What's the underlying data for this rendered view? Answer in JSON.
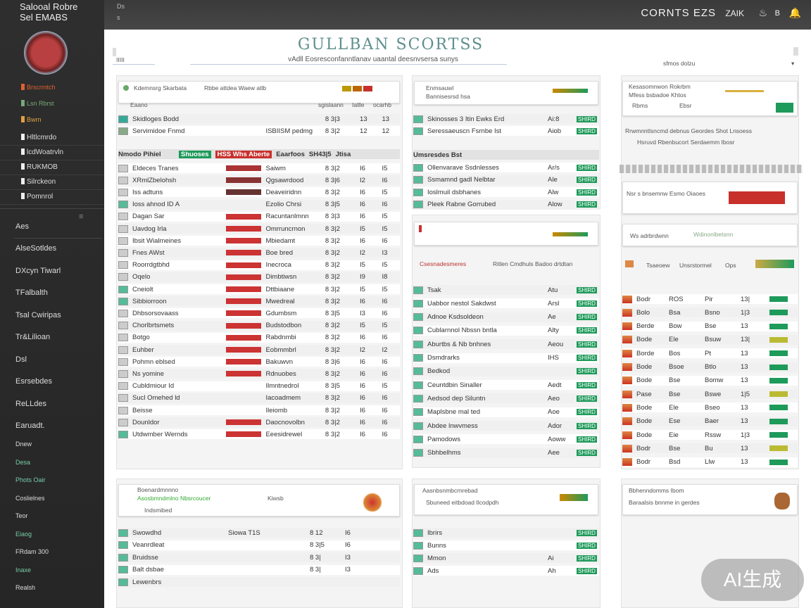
{
  "sidebar": {
    "title_line1": "Salooal Robre",
    "title_line2": "Sel EMABS",
    "top_items": [
      {
        "label": "Brscrmtch",
        "color": "#e06030"
      },
      {
        "label": "Lsn Rbrst",
        "color": "#7a7"
      },
      {
        "label": "Bwrn",
        "color": "#e0a040"
      }
    ],
    "group_items": [
      "Hltlcmrdo",
      "lcdWoatrvln",
      "RUKMOB",
      "Silrckeon",
      "Pomnrol"
    ],
    "section_label": "Aes",
    "items": [
      "AlseSotldes",
      "DXcyn Tiwarl",
      "TFalbalth",
      "Tsal Cwiripas",
      "Tr&Lilioan",
      "Dsl",
      "Esrsebdes",
      "ReLLdes",
      "Earuadt."
    ],
    "small_items": [
      {
        "label": "Dnew",
        "color": "#ddd"
      },
      {
        "label": "Desa",
        "color": "#7ca"
      },
      {
        "label": "Phots Oair",
        "color": "#7ca"
      },
      {
        "label": "Coslielnes",
        "color": "#ddd"
      },
      {
        "label": "Teor",
        "color": "#ddd"
      },
      {
        "label": "Eiaog",
        "color": "#7ca"
      },
      {
        "label": "FRdam 300",
        "color": "#ddd"
      },
      {
        "label": "Inaxe",
        "color": "#7ca"
      },
      {
        "label": "Realsh",
        "color": "#ddd"
      }
    ]
  },
  "topbar": {
    "left1": "Ds",
    "left2": "s",
    "title": "CORNTS EZS",
    "right_text": "ZAIK",
    "icons": [
      "flame-icon",
      "b-icon",
      "bell-icon"
    ]
  },
  "header": {
    "title": "GULLBAN SCORTSS",
    "subtitle": "vAdll Eosresconfanntlanav uaantal deesnvsersa sunys",
    "left_label": "IIIII",
    "right_label": "sfmos dolzu"
  },
  "col1": {
    "head_title": "Kdemnsrg Skarbata",
    "head_desc": "Rbbe attdea Waew atlb",
    "columns": [
      "Eaano",
      "",
      "",
      "sgislaann",
      "Iallle",
      "ocarhb"
    ],
    "rows": [
      {
        "n": "Skidloges Bodd",
        "b": "",
        "t": "",
        "v": "8 3|3",
        "p": "13",
        "q": "13",
        "i": "#3a9"
      },
      {
        "n": "Servimidoe Fnmd",
        "b": "",
        "t": "ISBIISM pedmg",
        "v": "8 3|2",
        "p": "12",
        "q": "12",
        "i": "#8a8"
      }
    ],
    "group": {
      "label": "Nmodo Pihiel",
      "chip": "Shuoses",
      "tag": "HSS Whs Aberte",
      "tag2": "Eaarfoos",
      "n1": "SH43|5",
      "n2": "Jtisa"
    },
    "rows2": [
      {
        "n": "Eldeces Tranes",
        "b": "#a33",
        "t": "Saiwm",
        "v": "8 3|2",
        "p": "I6",
        "q": "I5",
        "i": "#ccc"
      },
      {
        "n": "XRmlZbelohsh",
        "b": "#833",
        "t": "Qgsawrdood",
        "v": "8 3|6",
        "p": "I2",
        "q": "I6",
        "i": "#ccc"
      },
      {
        "n": "Iss adtuns",
        "b": "#633",
        "t": "Deaveiridnn",
        "v": "8 3|2",
        "p": "I6",
        "q": "I5",
        "i": "#ccc"
      },
      {
        "n": "Ioss ahnod ID A",
        "b": "",
        "t": "Ezolio Chrsi",
        "v": "8 3|5",
        "p": "I6",
        "q": "I6",
        "i": "#5b9"
      },
      {
        "n": "Dagan Sar",
        "b": "#c33",
        "t": "Racuntanlmnn",
        "v": "8 3|3",
        "p": "I6",
        "q": "I5",
        "i": "#ccc"
      },
      {
        "n": "Uavdog Irla",
        "b": "#c33",
        "t": "Omrruncrnon",
        "v": "8 3|2",
        "p": "I5",
        "q": "I5",
        "i": "#ccc"
      },
      {
        "n": "Ibsit Wialmeines",
        "b": "#c33",
        "t": "Mbiedamt",
        "v": "8 3|2",
        "p": "I6",
        "q": "I6",
        "i": "#ccc"
      },
      {
        "n": "Fnes AWst",
        "b": "#c33",
        "t": "Boe bred",
        "v": "8 3|2",
        "p": "I2",
        "q": "I3",
        "i": "#ccc"
      },
      {
        "n": "Roorrdgtbhd",
        "b": "#c33",
        "t": "Inecroca",
        "v": "8 3|2",
        "p": "I5",
        "q": "I5",
        "i": "#ccc"
      },
      {
        "n": "Oqelo",
        "b": "#c33",
        "t": "Dimbtiwsn",
        "v": "8 3|2",
        "p": "I9",
        "q": "I8",
        "i": "#ccc"
      },
      {
        "n": "Cneiolt",
        "b": "#c33",
        "t": "Dttbiaane",
        "v": "8 3|2",
        "p": "I5",
        "q": "I5",
        "i": "#5b9"
      },
      {
        "n": "Sibbiorroon",
        "b": "#c33",
        "t": "Mwedreal",
        "v": "8 3|2",
        "p": "I6",
        "q": "I6",
        "i": "#5b9"
      },
      {
        "n": "Dhbsorsovaass",
        "b": "#c33",
        "t": "Gdumbsm",
        "v": "8 3|5",
        "p": "I3",
        "q": "I6",
        "i": "#ccc"
      },
      {
        "n": "Chorlbrtsmets",
        "b": "#c33",
        "t": "Budstodbon",
        "v": "8 3|2",
        "p": "I5",
        "q": "I5",
        "i": "#ccc"
      },
      {
        "n": "Botgo",
        "b": "#c33",
        "t": "Rabdnmbi",
        "v": "8 3|2",
        "p": "I6",
        "q": "I6",
        "i": "#ccc"
      },
      {
        "n": "Euhber",
        "b": "#c33",
        "t": "Eobmmbrl",
        "v": "8 3|2",
        "p": "I2",
        "q": "I2",
        "i": "#ccc"
      },
      {
        "n": "Pohmn eblsed",
        "b": "#c33",
        "t": "Bakuwvn",
        "v": "8 3|6",
        "p": "I6",
        "q": "I6",
        "i": "#ccc"
      },
      {
        "n": "Ns yomine",
        "b": "#c33",
        "t": "Rdnuobes",
        "v": "8 3|2",
        "p": "I6",
        "q": "I6",
        "i": "#ccc"
      },
      {
        "n": "Cubldmiour Id",
        "b": "",
        "t": "Ilmntnedrol",
        "v": "8 3|5",
        "p": "I6",
        "q": "I5",
        "i": "#ccc"
      },
      {
        "n": "Sucl Omehed ld",
        "b": "",
        "t": "Iacoadmem",
        "v": "8 3|2",
        "p": "I6",
        "q": "I6",
        "i": "#ccc"
      },
      {
        "n": "Beisse",
        "b": "",
        "t": "Ileiomb",
        "v": "8 3|2",
        "p": "I6",
        "q": "I6",
        "i": "#ccc"
      },
      {
        "n": "Dounldor",
        "b": "#c33",
        "t": "Daocnovolbn",
        "v": "8 3|2",
        "p": "I6",
        "q": "I6",
        "i": "#ccc"
      },
      {
        "n": "Utdwmber Wernds",
        "b": "#c33",
        "t": "Eeesidrewel",
        "v": "8 3|2",
        "p": "I6",
        "q": "I6",
        "i": "#5b9"
      }
    ]
  },
  "col2": {
    "head_title": "Enmsauwl",
    "head_desc": "Bannisesrsd hsa",
    "group": "Umsresdes Bst",
    "box_title": "Csesnadesmeres",
    "box_sub": "Ritlen Cmdhuls Badoo drtdtan",
    "rows": [
      {
        "n": "Skinosses 3 Itin Ewks Erd",
        "v": "Ai:8",
        "q": "SHIRD"
      },
      {
        "n": "Seressaeuscn Fsrnbe Ist",
        "v": "Aiob",
        "q": "SHIRD"
      }
    ],
    "rows2": [
      {
        "n": "Ollenvarave Ssdnlesses",
        "v": "Ar/s",
        "q": "SHIRD"
      },
      {
        "n": "Ssmamnd gadl Nelbtar",
        "v": "Ale",
        "q": "SHIRD"
      },
      {
        "n": "Ioslmuil dsbhanes",
        "v": "Alw",
        "q": "SHIRD"
      },
      {
        "n": "Pleek Rabne Gorrubed",
        "v": "Alow",
        "q": "SHIRD"
      }
    ],
    "rows3": [
      {
        "n": "Tsak",
        "v": "Atu",
        "q": "SHIRD"
      },
      {
        "n": "Uabbor nestol Sakdwst",
        "v": "Arsl",
        "q": "SHIRD"
      },
      {
        "n": "Adnoe Ksdsoldeon",
        "v": "Ae",
        "q": "SHIRD"
      },
      {
        "n": "Cublarnnol Nbssn bntla",
        "v": "Alty",
        "q": "SHIRD"
      },
      {
        "n": "Aburtbs & Nb bnhnes",
        "v": "Aeou",
        "q": "SHIRD"
      },
      {
        "n": "Dsmdrarks",
        "v": "IHS",
        "q": "SHIRD"
      },
      {
        "n": "Bedkod",
        "v": "",
        "q": "SHIRD"
      },
      {
        "n": "Ceuntdbin Sinaller",
        "v": "Aedt",
        "q": "SHIRD"
      },
      {
        "n": "Aedsod dep Siluntn",
        "v": "Aeo",
        "q": "SHIRD"
      },
      {
        "n": "Maplsbne mal ted",
        "v": "Aoe",
        "q": "SHIRD"
      },
      {
        "n": "Abdee lnwvmess",
        "v": "Ador",
        "q": "SHIRD"
      },
      {
        "n": "Pamodows",
        "v": "Aoww",
        "q": "SHIRD"
      },
      {
        "n": "Sbhbelhms",
        "v": "Aee",
        "q": "SHIRD"
      }
    ]
  },
  "col3": {
    "head_title": "Kesasomnwon Rokrbm",
    "head_desc": "Mfess bsbadoe Khtos",
    "head_a": "Rbms",
    "head_b": "Ebsr",
    "line1": "Rrwmnntlsncmd debnus Geordes Shot Lnsoess",
    "line2": "Hsruvd Rbenbucort Serdaemm Ibosr",
    "box2": "Nsr s bnsemnw Esmo Oiaoes",
    "box3": "Ws adrbrdwnn",
    "box3_tag": "Wdinonlbetsnn",
    "hdr": [
      "Tsaeoew",
      "Unsrstormel",
      "Ops"
    ],
    "rows": [
      {
        "a": "Bodr",
        "b": "ROS",
        "c": "Pir",
        "d": "13|"
      },
      {
        "a": "Bolo",
        "b": "Bsa",
        "c": "Bsno",
        "d": "1|3"
      },
      {
        "a": "Berde",
        "b": "Bow",
        "c": "Bse",
        "d": "13"
      },
      {
        "a": "Bode",
        "b": "Ele",
        "c": "Bsuw",
        "d": "13|"
      },
      {
        "a": "Borde",
        "b": "Bos",
        "c": "Pt",
        "d": "13"
      },
      {
        "a": "Bode",
        "b": "Bsoe",
        "c": "Btlo",
        "d": "13"
      },
      {
        "a": "Bode",
        "b": "Bse",
        "c": "Bomw",
        "d": "13"
      },
      {
        "a": "Pase",
        "b": "Bse",
        "c": "Bswe",
        "d": "1|5"
      },
      {
        "a": "Bode",
        "b": "Ele",
        "c": "Bseo",
        "d": "13"
      },
      {
        "a": "Bode",
        "b": "Ese",
        "c": "Baer",
        "d": "13"
      },
      {
        "a": "Bode",
        "b": "Eie",
        "c": "Rssw",
        "d": "1|3"
      },
      {
        "a": "Bodr",
        "b": "Bse",
        "c": "Bu",
        "d": "13"
      },
      {
        "a": "Bodr",
        "b": "Bsd",
        "c": "Llw",
        "d": "13"
      }
    ]
  },
  "bottom": {
    "p1": {
      "title": "Boenardmnnno",
      "desc": "Asosbmndmlno Nbsrcoucer",
      "sub": "Indsmibed",
      "mid": "Kiwsb",
      "rows": [
        {
          "n": "Swowdhd",
          "t": "Siowa T1S",
          "v": "8 12",
          "p": "I6"
        },
        {
          "n": "Veanrdleat",
          "t": "",
          "v": "8 3|5",
          "p": "I6"
        },
        {
          "n": "Bruidsse",
          "t": "",
          "v": "8 3|",
          "p": "I3"
        },
        {
          "n": "Balt dsbae",
          "t": "",
          "v": "8 3|",
          "p": "I3"
        },
        {
          "n": "Lewenbrs",
          "t": "",
          "v": "",
          "p": ""
        }
      ]
    },
    "p2": {
      "title": "Aasnbsnmbcrnrebad",
      "desc": "Sbuneed eitbdoad Ilcodpdh",
      "rows": [
        {
          "n": "Ibrirs",
          "v": "",
          "q": "SHIRD"
        },
        {
          "n": "Bunns",
          "v": "",
          "q": "SHIRD"
        },
        {
          "n": "Mmon",
          "v": "Ai",
          "q": "SHIRD"
        },
        {
          "n": "Ads",
          "v": "Ah",
          "q": "SHIRD"
        }
      ]
    },
    "p3": {
      "title": "Bbhenndomms Ibom",
      "desc": "Baraalsis bnnme in gerdes"
    }
  },
  "colors": {
    "accent": "#5e8f8c",
    "green": "#1e9a5a",
    "red": "#c8302c",
    "sidebar": "#2b2b2b"
  },
  "watermark": "AI生成"
}
